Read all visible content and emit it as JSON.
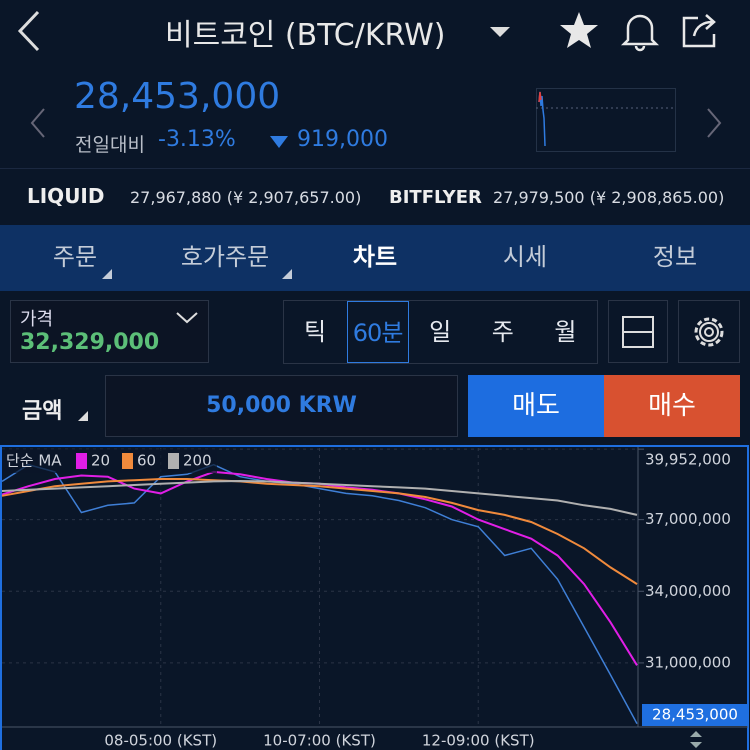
{
  "header": {
    "title": "비트코인 (BTC/KRW)"
  },
  "price": {
    "current": "28,453,000",
    "change_label": "전일대비",
    "change_percent": "-3.13%",
    "change_amount": "919,000"
  },
  "exchanges": [
    {
      "name": "LIQUID",
      "price": "27,967,880 (¥ 2,907,657.00)"
    },
    {
      "name": "BITFLYER",
      "price": "27,979,500 (¥ 2,908,865.00)"
    }
  ],
  "tabs": [
    "주문",
    "호가주문",
    "차트",
    "시세",
    "정보"
  ],
  "active_tab": 2,
  "order": {
    "price_label": "가격",
    "price": "32,329,000",
    "periods": [
      "틱",
      "60분",
      "일",
      "주",
      "월"
    ],
    "active_period": 1,
    "amount_label": "금액",
    "amount": "50,000 KRW",
    "sell": "매도",
    "buy": "매수"
  },
  "chart_data": {
    "type": "line",
    "legend_title": "단순 MA",
    "categories": [
      null,
      null,
      null,
      null,
      null,
      null,
      "08-05:00 (KST)",
      null,
      null,
      null,
      null,
      null,
      "10-07:00 (KST)",
      null,
      null,
      null,
      null,
      null,
      "12-09:00 (KST)",
      null,
      null,
      null,
      null,
      null,
      null
    ],
    "values": [
      38600000,
      39300000,
      39000000,
      37300000,
      37600000,
      37700000,
      38800000,
      38900000,
      39300000,
      38800000,
      38600000,
      38500000,
      38300000,
      38100000,
      38000000,
      37800000,
      37500000,
      37000000,
      36700000,
      35500000,
      35800000,
      34500000,
      32500000,
      30500000,
      28453000
    ],
    "color": "#3f7fd6",
    "series": [
      {
        "name": "20",
        "color": "#e11ee6",
        "values": [
          38050000,
          38400000,
          38700000,
          38850000,
          38800000,
          38300000,
          38100000,
          38600000,
          39000000,
          38900000,
          38700000,
          38550000,
          38500000,
          38350000,
          38250000,
          38100000,
          37850000,
          37550000,
          37000000,
          36600000,
          36200000,
          35500000,
          34300000,
          32700000,
          30900000
        ]
      },
      {
        "name": "60",
        "color": "#f08a3c",
        "values": [
          38000000,
          38200000,
          38400000,
          38500000,
          38600000,
          38650000,
          38700000,
          38700000,
          38650000,
          38600000,
          38500000,
          38450000,
          38400000,
          38300000,
          38200000,
          38100000,
          37950000,
          37700000,
          37400000,
          37200000,
          36900000,
          36400000,
          35800000,
          35000000,
          34300000
        ]
      },
      {
        "name": "200",
        "color": "#b0b0b0",
        "values": [
          38200000,
          38250000,
          38300000,
          38350000,
          38400000,
          38450000,
          38500000,
          38550000,
          38600000,
          38620000,
          38600000,
          38550000,
          38500000,
          38450000,
          38400000,
          38350000,
          38300000,
          38200000,
          38100000,
          38000000,
          37900000,
          37800000,
          37600000,
          37450000,
          37200000
        ]
      }
    ],
    "ylim": [
      28400000,
      40000000
    ],
    "yticks": [
      {
        "value": 39952000,
        "label": "39,952,000"
      },
      {
        "value": 37000000,
        "label": "37,000,000"
      },
      {
        "value": 34000000,
        "label": "34,000,000"
      },
      {
        "value": 31000000,
        "label": "31,000,000"
      }
    ],
    "last_price": {
      "value": 28453000,
      "label": "28,453,000"
    },
    "grid": true
  }
}
